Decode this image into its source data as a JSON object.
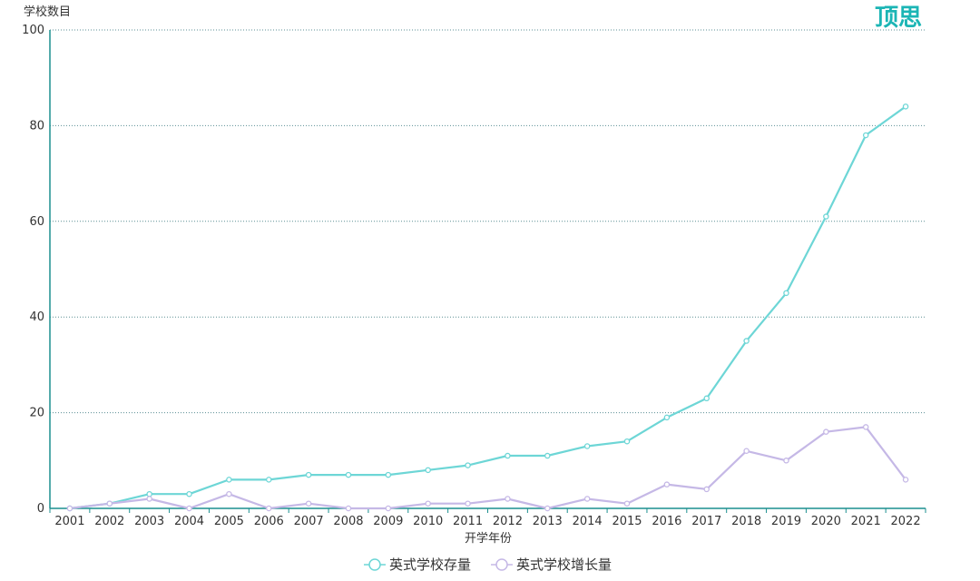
{
  "brand": {
    "logo_text": "顶思",
    "accent": "#1bb5b5"
  },
  "chart_data": {
    "type": "line",
    "title": "",
    "xlabel": "开学年份",
    "ylabel": "学校数目",
    "ylim": [
      0,
      100
    ],
    "yticks": [
      0,
      20,
      40,
      60,
      80,
      100
    ],
    "grid": "horizontal dotted",
    "legend_position": "bottom",
    "categories": [
      "2001",
      "2002",
      "2003",
      "2004",
      "2005",
      "2006",
      "2007",
      "2008",
      "2009",
      "2010",
      "2011",
      "2012",
      "2013",
      "2014",
      "2015",
      "2016",
      "2017",
      "2018",
      "2019",
      "2020",
      "2021",
      "2022"
    ],
    "series": [
      {
        "name": "英式学校存量",
        "color": "#6dd6d6",
        "values": [
          0,
          1,
          3,
          3,
          6,
          6,
          7,
          7,
          7,
          8,
          9,
          11,
          11,
          13,
          14,
          19,
          23,
          35,
          45,
          61,
          78,
          84
        ]
      },
      {
        "name": "英式学校增长量",
        "color": "#c5b8e6",
        "values": [
          0,
          1,
          2,
          0,
          3,
          0,
          1,
          0,
          0,
          1,
          1,
          2,
          0,
          2,
          1,
          5,
          4,
          12,
          10,
          16,
          17,
          6
        ]
      }
    ]
  }
}
